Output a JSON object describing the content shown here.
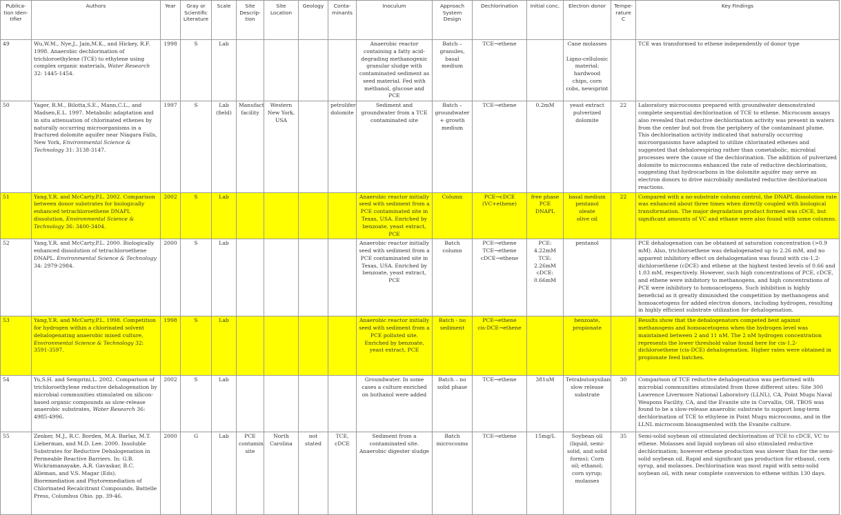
{
  "headers": {
    "pub_id": "Publica-tion Iden-tifier",
    "authors": "Authors",
    "year": "Year",
    "gray": "Gray or Scientific Literature",
    "scale": "Scale",
    "site_desc": "Site Descrip-tion",
    "site_loc": "Site Location",
    "geology": "Geology",
    "contaminants": "Conta-minants",
    "inoculum": "Inoculum",
    "approach": "Approach System Design",
    "dechlorination": "Dechlorination",
    "initial_conc": "Initial conc.",
    "electron_donor": "Electron donor",
    "temperature": "Tempe-rature C",
    "key_findings": "Key Findings"
  },
  "highlight_color": "#ffff00",
  "rows": [
    {
      "highlight": false,
      "pub_id": "49",
      "authors_text": "Wu,W.M., Nye,J., Jain,M.K., and Hickey, R.F. 1998. Anaerobic dechlorination of trichloroethylene (TCE) to ethylene using complex organic materials,",
      "journal": "Water Research",
      "authors_tail": "32: 1445-1454.",
      "year": "1998",
      "gray": "S",
      "scale": "Lab",
      "site_desc": "",
      "site_loc": "",
      "geology": "",
      "contaminants": "",
      "inoculum": "Anaerobic reactor containing a fatty acid-degrading methanogenic granular sludge with contaminated sediment as seed material. Fed with methanol, glucose and PCE",
      "approach": "Batch – granules, basal medium",
      "dechlorination": "TCE→ethene",
      "initial_conc": "",
      "electron_donor": "Cane molasses\n\nLigno-cellulosic material: hardwood chips, corn cobs, newsprint",
      "temperature": "",
      "key_findings": "TCE was transformed to ethene independently of donor type"
    },
    {
      "highlight": false,
      "pub_id": "50",
      "authors_text": "Yager, R.M., Bilotta,S.E., Mann,C.L., and Madsen,E.L. 1997. Metabolic adaptation and in situ attenuation of chlorinated ethenes by naturally occurring microorganisms in a fractured dolomite aquifer near Niagara Falls, New York,",
      "journal": "Environmental Science & Technology",
      "authors_tail": "31: 3138-3147.",
      "year": "1997",
      "gray": "S",
      "scale": "Lab (field)",
      "site_desc": "Manufacturing facility",
      "site_loc": "Western New York, USA",
      "geology": "",
      "contaminants": "petroliferous dolomite",
      "inoculum": "Sediment and groundwater from a TCE contaminated site",
      "approach": "Batch – groundwater + growth medium",
      "dechlorination": "TCE→ethene",
      "initial_conc": "0.2mM",
      "electron_donor": "yeast extract\npulverized dolomite",
      "temperature": "22",
      "key_findings": "Laboratory microcosms prepared with groundwater demonstrated complete sequential dechlorination of TCE to ethene. Microcosm assays also revealed that reductive dechlorination activity was present in waters from the center but not from the periphery of the contaminant plume. This dechlorination activity indicated that naturally occurring microorganisms have adapted to utilize chlorinated ethenes and suggested that dehalorespiring rather than cometabolic, microbial processes were the cause of the dechlorination. The addition of pulverized dolomite to microcosms enhanced the rate of reductive dechlorination, suggesting that hydrocarbons in the dolomite aquifer may serve as electron donors to drive microbially mediated reductive dechlorination reactions."
    },
    {
      "highlight": true,
      "pub_id": "51",
      "authors_text": "Yang,Y.R. and McCarty,P.L. 2002. Comparison between donor substrates for biologically enhanced tetrachloroethene DNAPL dissolution,",
      "journal": "Environmental Science & Technology",
      "authors_tail": "36: 3400-3404.",
      "year": "2002",
      "gray": "S",
      "scale": "Lab",
      "site_desc": "",
      "site_loc": "",
      "geology": "",
      "contaminants": "",
      "inoculum": "Anaerobic reactor initially seed with sediment from a PCE contaminated site in Texas, USA. Enriched by benzoate, yeast extract, PCE",
      "approach": "Column",
      "dechlorination": "PCE→cDCE\n(VC+ethene)",
      "initial_conc": "free phase PCE DNAPL",
      "electron_donor": "basal medium\npentanol\noleate\nolive oil",
      "temperature": "22",
      "key_findings": "Compared with a no-substrate column control, the DNAPL dissolution rate was enhanced about three times when directly coupled with biological transformation. The major degradation product formed was cDCE, but significant amounts of VC and ethane were also found with some columns."
    },
    {
      "highlight": false,
      "pub_id": "52",
      "authors_text": "Yang,Y.R. and McCarty,P.L. 2000. Biologically enhanced dissolution of tetrachloroethene DNAPL.",
      "journal": "Environmental Science & Technology",
      "authors_tail": "34: 2979-2984.",
      "year": "2000",
      "gray": "S",
      "scale": "Lab",
      "site_desc": "",
      "site_loc": "",
      "geology": "",
      "contaminants": "",
      "inoculum": "Anaerobic reactor initially seed with sediment from a PCE contaminated site in Texas, USA. Enriched by benzoate, yeast extract, PCE",
      "approach": "Batch column",
      "dechlorination": "PCE→ethene\nTCE→ethene\ncDCE→ethene",
      "initial_conc": "PCE: 4.22mM\nTCE: 2.26mM\ncDCE: 0.66mM",
      "electron_donor": "pentanol",
      "temperature": "",
      "key_findings": "PCE dehalogenation can be obtained at saturation concentration (>0.9 mM). Also, trichloroethene was dehalogenated up to 2.26 mM, and no apparent inhibitory effect on dehalogenation was found with cis-1,2-dichloroethene (cDCE) and ethene at the highest tested levels of 0.66 and 1.03 mM, respectively. However, such high concentrations of PCE, cDCE, and ethene were inhibitory to methanogens, and high concentrations of PCE were inhibitory to homoacetogens. Such inhibition is highly beneficial as it greatly diminished the competition by methanogens and homoacetogens for added electron donors, including hydrogen, resulting in highly efficient substrate utilization for dehalogenation."
    },
    {
      "highlight": true,
      "pub_id": "53",
      "authors_text": "Yang,Y.R. and McCarty,P.L. 1998. Competition for hydrogen within a chlorinated solvent dehalogenating anaerobic mixed culture,",
      "journal": "Environmental Science & Technology",
      "authors_tail": "32: 3591-3597.",
      "year": "1998",
      "gray": "S",
      "scale": "Lab",
      "site_desc": "",
      "site_loc": "",
      "geology": "",
      "contaminants": "",
      "inoculum": "Anaerobic reactor initially seed with sediment from a PCE polluted site. Enriched by benzoate, yeast extract, PCE",
      "approach": "Batch - no sediment",
      "dechlorination": "PCE→ethene\ncis-DCE→ethene",
      "initial_conc": "",
      "electron_donor": "benzoate,\npropionate",
      "temperature": "",
      "key_findings": "Results show that the dehalogenators competed best against methanogens and homoacetogens when the hydrogen level was maintained between 2 and 11 nM. The 2 nM hydrogen concentration represents the lower threshold value found here for cis-1,2- dichloroethene (cis-DCE) dehalogenation. Higher rates were obtained in propionate feed batches."
    },
    {
      "highlight": false,
      "pub_id": "54",
      "authors_text": "Yu,S.H. and Semprini,L. 2002. Comparison of trichloroethylene reductive dehalogenation by microbial communities stimulated on silicon-based organic compounds as slow-release anaerobic substrates,",
      "journal": "Water Research",
      "authors_tail": "36: 4985-4996.",
      "year": "2002",
      "gray": "S",
      "scale": "Lab",
      "site_desc": "",
      "site_loc": "",
      "geology": "",
      "contaminants": "",
      "inoculum": "Groundwater. In some cases a culture enriched on buthanol were added",
      "approach": "Batch – no solid phase",
      "dechlorination": "TCE→ethene",
      "initial_conc": "381uM",
      "electron_donor": "Tetrabutoxysilane: slow release substrate",
      "temperature": "30",
      "key_findings": "Comparison of TCE reductive dehalogenation was performed with microbial communities stimulated from three different sites: Site 300 Lawrence Livermore National Laboratory (LLNL), CA, Point Mugu Naval Weapons Facility, CA, and the Evanite site in Corvallis, OR. TBOS was found to be a slow-release anaerobic substrate to support long-term dechlorination of TCE to ethylene in Point Mugu microcosms, and in the LLNL microcosm bioaugmented with the Evanite culture."
    },
    {
      "highlight": false,
      "pub_id": "55",
      "authors_text": "Zenker, M.J., R.C. Borden, M.A. Barlaz, M.T. Lieberman, and M.D. Lee. 2000. Insoluble Substrates for Reductive Dehalogenation in Permeable Reactive Barriers. In: G.B. Wickramanayake, A.R. Gavaskar, B.C. Alleman, and V.S. Magar (Eds). Bioremediation and Phytoremediation of Chlorinated Recalcitrant Compounds. Battelle Press, Columbus Ohio. pp. 39-46.",
      "journal": "",
      "authors_tail": "",
      "year": "2000",
      "gray": "G",
      "scale": "Lab",
      "site_desc": "PCE contaminated site",
      "site_loc": "North Carolina",
      "geology": "not stated",
      "contaminants": "TCE, cDCE",
      "inoculum": "Sediment from a contaminated site. Anaerobic digester sludge",
      "approach": "Batch microcosms",
      "dechlorination": "TCE→ethene",
      "initial_conc": "15mg/L",
      "electron_donor": "Soybean oil (liquid, semi-solid, and solid forms); Corn oil; ethanol; corn syrup; molasses",
      "temperature": "35",
      "key_findings": "Semi-solid soybean oil stimulated dechlorination of TCE to cDCE, VC to ethene. Molasses and liquid soybean oil also stimulated reductive dechlorination; however ethene production was slower than for the semi-solid soybean oil. Rapid and significant gas production for ethanol, corn syrup, and molasses. Dechlorination was most rapid with semi-solid soybean oil, with near complete conversion to ethene within 130 days."
    }
  ]
}
